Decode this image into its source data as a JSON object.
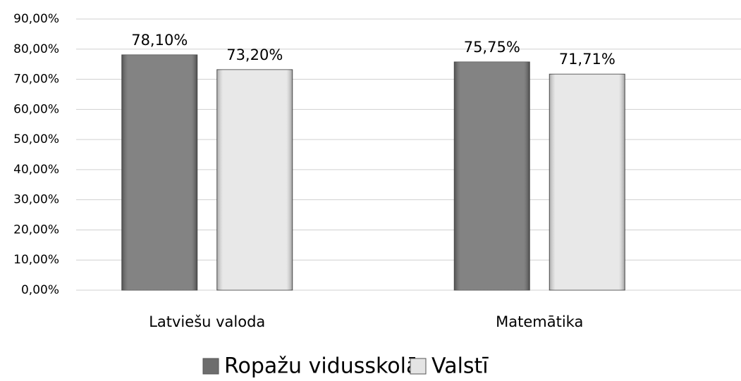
{
  "chart_data": {
    "type": "bar",
    "categories": [
      "Latviešu valoda",
      "Matemātika"
    ],
    "series": [
      {
        "name": "Ropažu vidusskolā",
        "color": "#6d6d6d",
        "values": [
          78.1,
          75.75
        ],
        "value_labels": [
          "78,10%",
          "75,75%"
        ]
      },
      {
        "name": "Valstī",
        "color": "#e4e4e4",
        "values": [
          73.2,
          71.71
        ],
        "value_labels": [
          "73,20%",
          "71,71%"
        ]
      }
    ],
    "ylim": [
      0,
      90
    ],
    "yticks": [
      {
        "value": 0,
        "label": "0,00%"
      },
      {
        "value": 10,
        "label": "10,00%"
      },
      {
        "value": 20,
        "label": "20,00%"
      },
      {
        "value": 30,
        "label": "30,00%"
      },
      {
        "value": 40,
        "label": "40,00%"
      },
      {
        "value": 50,
        "label": "50,00%"
      },
      {
        "value": 60,
        "label": "60,00%"
      },
      {
        "value": 70,
        "label": "70,00%"
      },
      {
        "value": 80,
        "label": "80,00%"
      },
      {
        "value": 90,
        "label": "90,00%"
      }
    ],
    "grid": true,
    "legend": "bottom"
  }
}
